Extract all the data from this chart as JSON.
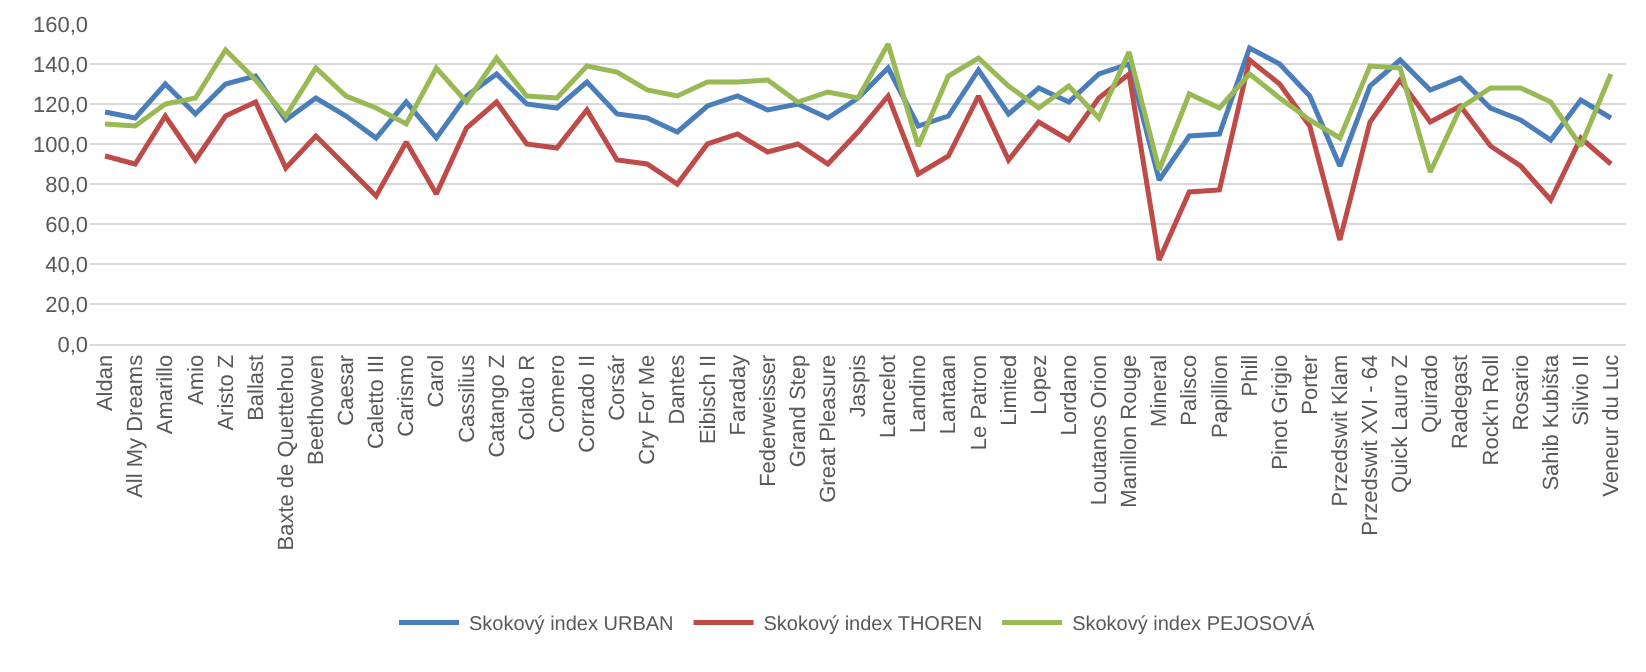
{
  "chart_data": {
    "type": "line",
    "categories": [
      "Aldan",
      "All My Dreams",
      "Amarillo",
      "Amio",
      "Aristo Z",
      "Ballast",
      "Baxte de Quettehou",
      "Beethowen",
      "Caesar",
      "Caletto III",
      "Carismo",
      "Carol",
      "Cassilius",
      "Catango Z",
      "Colato R",
      "Comero",
      "Corrado II",
      "Corsár",
      "Cry For Me",
      "Dantes",
      "Eibisch II",
      "Faraday",
      "Federweisser",
      "Grand Step",
      "Great Pleasure",
      "Jaspis",
      "Lancelot",
      "Landino",
      "Lantaan",
      "Le Patron",
      "Limited",
      "Lopez",
      "Lordano",
      "Loutanos Orion",
      "Manillon Rouge",
      "Mineral",
      "Palisco",
      "Papillion",
      "Phill",
      "Pinot Grigio",
      "Porter",
      "Przedswit Klam",
      "Przedswit XVI - 64",
      "Quick Lauro Z",
      "Quirado",
      "Radegast",
      "Rock'n Roll",
      "Rosario",
      "Sahib Kubišta",
      "Silvio II",
      "Veneur du Luc"
    ],
    "series": [
      {
        "name": "Skokový index URBAN",
        "color": "#4a7ebb",
        "values": [
          116,
          113,
          130,
          115,
          130,
          134,
          112,
          123,
          114,
          103,
          121,
          103,
          124,
          135,
          120,
          118,
          131,
          115,
          113,
          106,
          119,
          124,
          117,
          120,
          113,
          123,
          138,
          109,
          114,
          137,
          115,
          128,
          121,
          135,
          140,
          82,
          104,
          105,
          148,
          140,
          124,
          89,
          129,
          142,
          127,
          133,
          118,
          112,
          102,
          122,
          113
        ]
      },
      {
        "name": "Skokový index THOREN",
        "color": "#be4b48",
        "values": [
          94,
          90,
          114,
          92,
          114,
          121,
          88,
          104,
          89,
          74,
          101,
          75,
          108,
          121,
          100,
          98,
          117,
          92,
          90,
          80,
          100,
          105,
          96,
          100,
          90,
          106,
          124,
          85,
          94,
          124,
          92,
          111,
          102,
          123,
          135,
          42,
          76,
          77,
          142,
          130,
          109,
          52,
          111,
          132,
          111,
          119,
          99,
          89,
          72,
          103,
          90
        ]
      },
      {
        "name": "Skokový index PEJOSOVÁ",
        "color": "#98b954",
        "values": [
          110,
          109,
          120,
          123,
          147,
          132,
          114,
          138,
          124,
          118,
          110,
          138,
          121,
          143,
          124,
          123,
          139,
          136,
          127,
          124,
          131,
          131,
          132,
          121,
          126,
          123,
          150,
          99,
          134,
          143,
          129,
          118,
          129,
          113,
          146,
          87,
          125,
          118,
          135,
          123,
          112,
          103,
          139,
          138,
          86,
          118,
          128,
          128,
          121,
          99,
          135
        ]
      }
    ],
    "ylim": [
      0,
      160
    ],
    "yticks": [
      {
        "value": 0,
        "label": "0,0"
      },
      {
        "value": 20,
        "label": "20,0"
      },
      {
        "value": 40,
        "label": "40,0"
      },
      {
        "value": 60,
        "label": "60,0"
      },
      {
        "value": 80,
        "label": "80,0"
      },
      {
        "value": 100,
        "label": "100,0"
      },
      {
        "value": 120,
        "label": "120,0"
      },
      {
        "value": 140,
        "label": "140,0"
      },
      {
        "value": 160,
        "label": "160,0"
      }
    ],
    "grid": "y",
    "legend": "bottom",
    "marker": "none",
    "line_style": "solid"
  }
}
